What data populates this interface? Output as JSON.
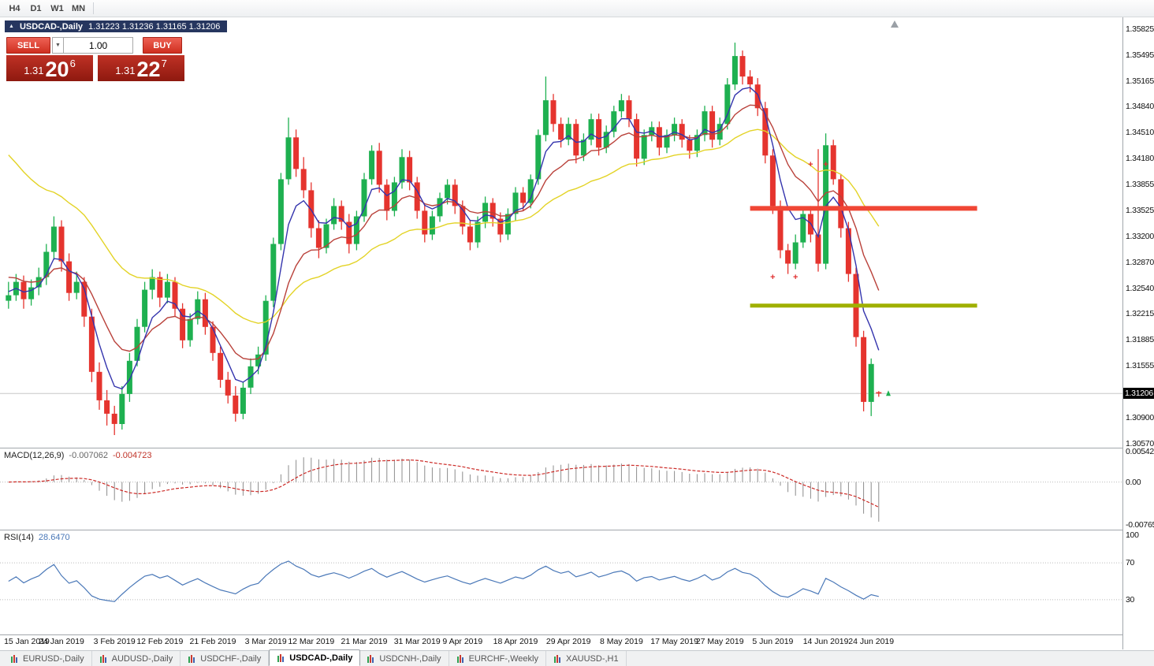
{
  "colors": {
    "candle_up": "#1eb050",
    "candle_down": "#e5342e",
    "ma_fast": "#3434ad",
    "ma_mid": "#b9413a",
    "ma_slow": "#e3d326",
    "macd_hist": "#8c8c8c",
    "macd_signal": "#cc2a26",
    "rsi_line": "#4a78b8",
    "object_red": "#f04635",
    "object_olive": "#a0b000",
    "marker": "#e03030",
    "price_tag_bg": "#000000"
  },
  "toolbar": {
    "timeframes": [
      "H4",
      "D1",
      "W1",
      "MN"
    ]
  },
  "chart_header": {
    "collapse_icon": "▲",
    "symbol_period": "USDCAD-,Daily",
    "ohlc": "1.31223 1.31236 1.31165 1.31206"
  },
  "trade_panel": {
    "sell_label": "SELL",
    "buy_label": "BUY",
    "volume": "1.00",
    "volume_dropdown_icon": "▼",
    "sell_price": {
      "whole": "1.31",
      "pips": "20",
      "sup": "6"
    },
    "buy_price": {
      "whole": "1.31",
      "pips": "22",
      "sup": "7"
    }
  },
  "price_axis_labels": [
    "1.35825",
    "1.35495",
    "1.35165",
    "1.34840",
    "1.34510",
    "1.34180",
    "1.33855",
    "1.33525",
    "1.33200",
    "1.32870",
    "1.32540",
    "1.32215",
    "1.31885",
    "1.31555",
    "1.30900",
    "1.30570"
  ],
  "current_price": "1.31206",
  "macd_panel": {
    "name": "MACD(12,26,9)",
    "main_value": "-0.007062",
    "signal_value": "-0.004723",
    "axis_top": "0.005421",
    "axis_zero": "0.00",
    "axis_bottom": "-0.007656"
  },
  "rsi_panel": {
    "name": "RSI(14)",
    "value": "28.6470",
    "axis_top": "100",
    "axis_upper": "70",
    "axis_lower": "30"
  },
  "date_axis": [
    {
      "label": "15 Jan 2019",
      "bar": 0
    },
    {
      "label": "24 Jan 2019",
      "bar": 7
    },
    {
      "label": "3 Feb 2019",
      "bar": 14
    },
    {
      "label": "12 Feb 2019",
      "bar": 20
    },
    {
      "label": "21 Feb 2019",
      "bar": 27
    },
    {
      "label": "3 Mar 2019",
      "bar": 34
    },
    {
      "label": "12 Mar 2019",
      "bar": 40
    },
    {
      "label": "21 Mar 2019",
      "bar": 47
    },
    {
      "label": "31 Mar 2019",
      "bar": 54
    },
    {
      "label": "9 Apr 2019",
      "bar": 60
    },
    {
      "label": "18 Apr 2019",
      "bar": 67
    },
    {
      "label": "29 Apr 2019",
      "bar": 74
    },
    {
      "label": "8 May 2019",
      "bar": 81
    },
    {
      "label": "17 May 2019",
      "bar": 88
    },
    {
      "label": "27 May 2019",
      "bar": 94
    },
    {
      "label": "5 Jun 2019",
      "bar": 101
    },
    {
      "label": "14 Jun 2019",
      "bar": 108
    },
    {
      "label": "24 Jun 2019",
      "bar": 114
    }
  ],
  "bottom_tabs": [
    {
      "label": "EURUSD-,Daily",
      "active": false
    },
    {
      "label": "AUDUSD-,Daily",
      "active": false
    },
    {
      "label": "USDCHF-,Daily",
      "active": false
    },
    {
      "label": "USDCAD-,Daily",
      "active": true
    },
    {
      "label": "USDCNH-,Daily",
      "active": false
    },
    {
      "label": "EURCHF-,Weekly",
      "active": false
    },
    {
      "label": "XAUUSD-,H1",
      "active": false
    }
  ],
  "chart_data": {
    "type": "candlestick",
    "symbol": "USDCAD",
    "period": "Daily",
    "price_range": {
      "top": 1.3597,
      "bottom": 1.3052
    },
    "macd_scale": {
      "top": 0.006,
      "bottom": -0.0085
    },
    "shift_marker_bar": 117.6,
    "candles": [
      [
        1.3238,
        1.3262,
        1.3228,
        1.3245
      ],
      [
        1.3245,
        1.3272,
        1.3238,
        1.3262
      ],
      [
        1.3262,
        1.327,
        1.3228,
        1.324
      ],
      [
        1.324,
        1.3265,
        1.3232,
        1.3255
      ],
      [
        1.3255,
        1.328,
        1.3245,
        1.3268
      ],
      [
        1.3268,
        1.331,
        1.3258,
        1.33
      ],
      [
        1.33,
        1.3345,
        1.329,
        1.3332
      ],
      [
        1.3332,
        1.334,
        1.3275,
        1.3288
      ],
      [
        1.3288,
        1.3298,
        1.3238,
        1.3248
      ],
      [
        1.3248,
        1.3275,
        1.324,
        1.3262
      ],
      [
        1.3262,
        1.3268,
        1.3205,
        1.3218
      ],
      [
        1.3218,
        1.3228,
        1.3135,
        1.3148
      ],
      [
        1.3148,
        1.316,
        1.31,
        1.3112
      ],
      [
        1.3112,
        1.3125,
        1.308,
        1.3095
      ],
      [
        1.3095,
        1.3105,
        1.3068,
        1.3082
      ],
      [
        1.3082,
        1.313,
        1.3075,
        1.312
      ],
      [
        1.312,
        1.3172,
        1.311,
        1.3162
      ],
      [
        1.3162,
        1.3215,
        1.3155,
        1.3205
      ],
      [
        1.3205,
        1.3262,
        1.3198,
        1.3252
      ],
      [
        1.3252,
        1.3278,
        1.324,
        1.3268
      ],
      [
        1.3268,
        1.3275,
        1.323,
        1.3242
      ],
      [
        1.3242,
        1.3272,
        1.3235,
        1.3262
      ],
      [
        1.3262,
        1.3268,
        1.3218,
        1.3228
      ],
      [
        1.3228,
        1.3235,
        1.3178,
        1.3188
      ],
      [
        1.3188,
        1.3222,
        1.318,
        1.3215
      ],
      [
        1.3215,
        1.325,
        1.3208,
        1.324
      ],
      [
        1.324,
        1.3248,
        1.3195,
        1.3205
      ],
      [
        1.3205,
        1.3212,
        1.3162,
        1.3172
      ],
      [
        1.3172,
        1.318,
        1.3128,
        1.3138
      ],
      [
        1.3138,
        1.3148,
        1.3108,
        1.3118
      ],
      [
        1.3118,
        1.313,
        1.3085,
        1.3095
      ],
      [
        1.3095,
        1.3135,
        1.3088,
        1.3128
      ],
      [
        1.3128,
        1.3165,
        1.312,
        1.3155
      ],
      [
        1.3155,
        1.318,
        1.3145,
        1.317
      ],
      [
        1.317,
        1.3245,
        1.3162,
        1.3238
      ],
      [
        1.3238,
        1.3318,
        1.323,
        1.331
      ],
      [
        1.331,
        1.34,
        1.3302,
        1.3392
      ],
      [
        1.3392,
        1.347,
        1.3385,
        1.3445
      ],
      [
        1.3445,
        1.3455,
        1.3395,
        1.3405
      ],
      [
        1.3405,
        1.342,
        1.3368,
        1.3378
      ],
      [
        1.3378,
        1.3388,
        1.3318,
        1.333
      ],
      [
        1.333,
        1.334,
        1.3292,
        1.3305
      ],
      [
        1.3305,
        1.3342,
        1.3298,
        1.3335
      ],
      [
        1.3335,
        1.3368,
        1.3328,
        1.3358
      ],
      [
        1.3358,
        1.3365,
        1.3328,
        1.3338
      ],
      [
        1.3338,
        1.3348,
        1.3298,
        1.331
      ],
      [
        1.331,
        1.3352,
        1.3302,
        1.3345
      ],
      [
        1.3345,
        1.34,
        1.3338,
        1.3392
      ],
      [
        1.3392,
        1.3435,
        1.3385,
        1.3428
      ],
      [
        1.3428,
        1.3438,
        1.3375,
        1.3385
      ],
      [
        1.3385,
        1.3392,
        1.334,
        1.3352
      ],
      [
        1.3352,
        1.3395,
        1.3345,
        1.3388
      ],
      [
        1.3388,
        1.343,
        1.338,
        1.342
      ],
      [
        1.342,
        1.3428,
        1.3378,
        1.3388
      ],
      [
        1.3388,
        1.3395,
        1.3342,
        1.3352
      ],
      [
        1.3352,
        1.336,
        1.3312,
        1.3322
      ],
      [
        1.3322,
        1.3352,
        1.3315,
        1.3345
      ],
      [
        1.3345,
        1.3375,
        1.3338,
        1.3368
      ],
      [
        1.3368,
        1.3392,
        1.336,
        1.3385
      ],
      [
        1.3385,
        1.3392,
        1.3348,
        1.3358
      ],
      [
        1.3358,
        1.3365,
        1.3322,
        1.3332
      ],
      [
        1.3332,
        1.334,
        1.3302,
        1.3312
      ],
      [
        1.3312,
        1.3345,
        1.3305,
        1.3338
      ],
      [
        1.3338,
        1.337,
        1.333,
        1.3362
      ],
      [
        1.3362,
        1.3368,
        1.3332,
        1.3342
      ],
      [
        1.3342,
        1.335,
        1.3312,
        1.3322
      ],
      [
        1.3322,
        1.3355,
        1.3315,
        1.3348
      ],
      [
        1.3348,
        1.3382,
        1.334,
        1.3375
      ],
      [
        1.3375,
        1.3382,
        1.3352,
        1.3362
      ],
      [
        1.3362,
        1.3398,
        1.3355,
        1.3392
      ],
      [
        1.3392,
        1.3455,
        1.3385,
        1.3448
      ],
      [
        1.3448,
        1.3522,
        1.344,
        1.3492
      ],
      [
        1.3492,
        1.35,
        1.3452,
        1.3462
      ],
      [
        1.3462,
        1.347,
        1.3432,
        1.3442
      ],
      [
        1.3442,
        1.347,
        1.3435,
        1.3462
      ],
      [
        1.3462,
        1.3468,
        1.3412,
        1.3422
      ],
      [
        1.3422,
        1.345,
        1.3415,
        1.3442
      ],
      [
        1.3442,
        1.3475,
        1.3435,
        1.3468
      ],
      [
        1.3468,
        1.3475,
        1.3422,
        1.3432
      ],
      [
        1.3432,
        1.346,
        1.3425,
        1.3452
      ],
      [
        1.3452,
        1.3485,
        1.3445,
        1.3478
      ],
      [
        1.3478,
        1.35,
        1.347,
        1.3492
      ],
      [
        1.3492,
        1.3498,
        1.3458,
        1.3468
      ],
      [
        1.3468,
        1.3475,
        1.3408,
        1.3418
      ],
      [
        1.3418,
        1.3455,
        1.341,
        1.3448
      ],
      [
        1.3448,
        1.3465,
        1.344,
        1.3458
      ],
      [
        1.3458,
        1.3465,
        1.3422,
        1.3432
      ],
      [
        1.3432,
        1.3455,
        1.3425,
        1.3448
      ],
      [
        1.3448,
        1.347,
        1.344,
        1.3462
      ],
      [
        1.3462,
        1.3468,
        1.3432,
        1.3442
      ],
      [
        1.3442,
        1.3448,
        1.3418,
        1.3428
      ],
      [
        1.3428,
        1.3455,
        1.342,
        1.3448
      ],
      [
        1.3448,
        1.3485,
        1.344,
        1.3478
      ],
      [
        1.3478,
        1.3485,
        1.3432,
        1.3442
      ],
      [
        1.3442,
        1.347,
        1.3435,
        1.3462
      ],
      [
        1.3462,
        1.352,
        1.3455,
        1.3512
      ],
      [
        1.3512,
        1.3565,
        1.3505,
        1.3548
      ],
      [
        1.3548,
        1.3555,
        1.3512,
        1.3522
      ],
      [
        1.3522,
        1.353,
        1.3502,
        1.3512
      ],
      [
        1.3512,
        1.352,
        1.3472,
        1.3482
      ],
      [
        1.3482,
        1.349,
        1.3412,
        1.3422
      ],
      [
        1.3422,
        1.343,
        1.3348,
        1.3358
      ],
      [
        1.3358,
        1.3365,
        1.3292,
        1.3302
      ],
      [
        1.3302,
        1.331,
        1.3272,
        1.3285
      ],
      [
        1.3285,
        1.3322,
        1.3278,
        1.3312
      ],
      [
        1.3312,
        1.3355,
        1.3305,
        1.3348
      ],
      [
        1.3348,
        1.3358,
        1.3312,
        1.3322
      ],
      [
        1.3322,
        1.343,
        1.3275,
        1.3285
      ],
      [
        1.3285,
        1.345,
        1.3278,
        1.3435
      ],
      [
        1.3435,
        1.3442,
        1.3385,
        1.3392
      ],
      [
        1.3392,
        1.3398,
        1.3318,
        1.333
      ],
      [
        1.333,
        1.3338,
        1.3262,
        1.3272
      ],
      [
        1.3272,
        1.328,
        1.318,
        1.3192
      ],
      [
        1.3192,
        1.32,
        1.3098,
        1.311
      ],
      [
        1.311,
        1.3165,
        1.3092,
        1.3158
      ],
      [
        1.31223,
        1.31236,
        1.31165,
        1.31206
      ]
    ],
    "objects": [
      {
        "name": "resistance-line",
        "type": "hline_segment",
        "price": 1.3355,
        "from_bar": 98,
        "to_bar": 128,
        "color_key": "object_red",
        "thickness": 6
      },
      {
        "name": "support-line",
        "type": "hline_segment",
        "price": 1.3232,
        "from_bar": 98,
        "to_bar": 128,
        "color_key": "object_olive",
        "thickness": 5
      }
    ],
    "markers": [
      {
        "bar": 101,
        "price": 1.3268,
        "glyph": "+"
      },
      {
        "bar": 104,
        "price": 1.3268,
        "glyph": "+"
      },
      {
        "bar": 106,
        "price": 1.3411,
        "glyph": "+"
      },
      {
        "bar": 108,
        "price": 1.3411,
        "glyph": "+"
      }
    ],
    "indicators": {
      "ma_fast": {
        "type": "ema",
        "period": 5,
        "seed": 1.3252
      },
      "ma_mid": {
        "type": "ema",
        "period": 12,
        "seed": 1.3272
      },
      "ma_slow": {
        "type": "ema",
        "period": 30,
        "seed": 1.3435
      },
      "macd": {
        "fast": 12,
        "slow": 26,
        "signal": 9
      },
      "rsi": {
        "period": 14
      }
    }
  }
}
